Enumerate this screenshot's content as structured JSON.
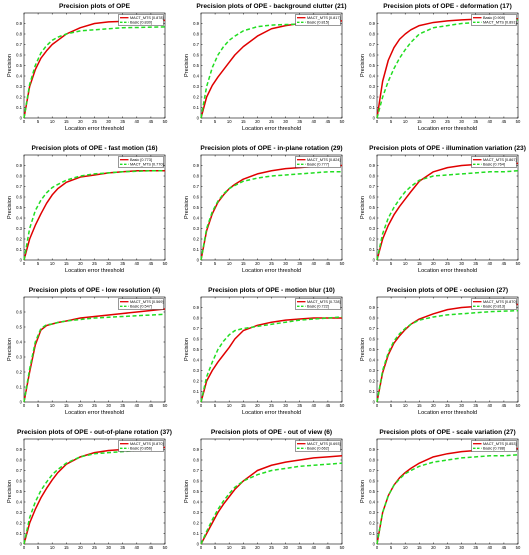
{
  "figure": {
    "background": "#ffffff"
  },
  "series_styles": [
    {
      "color": "#e00000",
      "dash": "none"
    },
    {
      "color": "#22dd22",
      "dash": "dashed"
    }
  ],
  "chart_data": [
    {
      "type": "line",
      "title": "Precision plots of OPE",
      "xlabel": "Location error threshold",
      "ylabel": "Precision",
      "xlim": [
        0,
        50
      ],
      "ylim": [
        0,
        1
      ],
      "yticks_max": 0.9,
      "legend": "top-right",
      "x": [
        0,
        2,
        4,
        6,
        8,
        10,
        12,
        15,
        20,
        25,
        30,
        35,
        40,
        45,
        50
      ],
      "series": [
        {
          "name": "MACT_MTS [0.878]",
          "values": [
            0,
            0.3,
            0.46,
            0.57,
            0.64,
            0.7,
            0.74,
            0.8,
            0.86,
            0.9,
            0.915,
            0.92,
            0.925,
            0.93,
            0.93
          ]
        },
        {
          "name": "Basic [0.830]",
          "values": [
            0,
            0.32,
            0.5,
            0.62,
            0.69,
            0.74,
            0.77,
            0.8,
            0.83,
            0.84,
            0.85,
            0.86,
            0.862,
            0.865,
            0.868
          ]
        }
      ]
    },
    {
      "type": "line",
      "title": "Precision plots of OPE - background clutter (21)",
      "xlabel": "Location error threshold",
      "ylabel": "Precision",
      "xlim": [
        0,
        50
      ],
      "ylim": [
        0,
        1
      ],
      "yticks_max": 0.9,
      "legend": "top-right",
      "x": [
        0,
        2,
        4,
        6,
        8,
        10,
        12,
        15,
        20,
        25,
        30,
        35,
        40,
        45,
        50
      ],
      "series": [
        {
          "name": "MACT_MTS [0.817]",
          "values": [
            0,
            0.2,
            0.31,
            0.39,
            0.46,
            0.53,
            0.6,
            0.68,
            0.78,
            0.85,
            0.88,
            0.9,
            0.91,
            0.92,
            0.925
          ]
        },
        {
          "name": "Basic [0.815]",
          "values": [
            0,
            0.3,
            0.48,
            0.6,
            0.68,
            0.74,
            0.78,
            0.83,
            0.87,
            0.885,
            0.89,
            0.895,
            0.9,
            0.9,
            0.9
          ]
        }
      ]
    },
    {
      "type": "line",
      "title": "Precision plots of OPE - deformation (17)",
      "xlabel": "Location error threshold",
      "ylabel": "Precision",
      "xlim": [
        0,
        50
      ],
      "ylim": [
        0,
        1
      ],
      "yticks_max": 0.9,
      "legend": "top-right",
      "x": [
        0,
        2,
        4,
        6,
        8,
        10,
        12,
        15,
        20,
        25,
        30,
        35,
        40,
        45,
        50
      ],
      "series": [
        {
          "name": "Basic [0.909]",
          "values": [
            0,
            0.35,
            0.55,
            0.67,
            0.75,
            0.8,
            0.84,
            0.88,
            0.91,
            0.925,
            0.935,
            0.94,
            0.945,
            0.945,
            0.945
          ]
        },
        {
          "name": "MACT_MTS [0.891]",
          "values": [
            0,
            0.2,
            0.35,
            0.47,
            0.57,
            0.65,
            0.72,
            0.8,
            0.86,
            0.88,
            0.9,
            0.91,
            0.92,
            0.93,
            0.935
          ]
        }
      ]
    },
    {
      "type": "line",
      "title": "Precision plots of OPE - fast motion (16)",
      "xlabel": "Location error threshold",
      "ylabel": "Precision",
      "xlim": [
        0,
        50
      ],
      "ylim": [
        0,
        1
      ],
      "yticks_max": 0.9,
      "legend": "top-right",
      "x": [
        0,
        2,
        4,
        6,
        8,
        10,
        12,
        15,
        20,
        25,
        30,
        35,
        40,
        45,
        50
      ],
      "series": [
        {
          "name": "Basic [0.773]",
          "values": [
            0,
            0.2,
            0.33,
            0.44,
            0.54,
            0.62,
            0.68,
            0.74,
            0.79,
            0.81,
            0.83,
            0.84,
            0.85,
            0.85,
            0.85
          ]
        },
        {
          "name": "MACT_MTS [0.770]",
          "values": [
            0,
            0.3,
            0.47,
            0.57,
            0.64,
            0.69,
            0.72,
            0.76,
            0.8,
            0.82,
            0.83,
            0.84,
            0.845,
            0.85,
            0.85
          ]
        }
      ]
    },
    {
      "type": "line",
      "title": "Precision plots of OPE - in-plane rotation (29)",
      "xlabel": "Location error threshold",
      "ylabel": "Precision",
      "xlim": [
        0,
        50
      ],
      "ylim": [
        0,
        1
      ],
      "yticks_max": 0.9,
      "legend": "top-right",
      "x": [
        0,
        2,
        4,
        6,
        8,
        10,
        12,
        15,
        20,
        25,
        30,
        35,
        40,
        45,
        50
      ],
      "series": [
        {
          "name": "MACT_MTS [0.824]",
          "values": [
            0,
            0.28,
            0.44,
            0.55,
            0.62,
            0.68,
            0.72,
            0.77,
            0.82,
            0.85,
            0.87,
            0.88,
            0.89,
            0.9,
            0.9
          ]
        },
        {
          "name": "Basic [0.777]",
          "values": [
            0,
            0.3,
            0.46,
            0.56,
            0.63,
            0.68,
            0.71,
            0.75,
            0.78,
            0.8,
            0.81,
            0.82,
            0.83,
            0.84,
            0.84
          ]
        }
      ]
    },
    {
      "type": "line",
      "title": "Precision plots of OPE - illumination variation (23)",
      "xlabel": "Location error threshold",
      "ylabel": "Precision",
      "xlim": [
        0,
        50
      ],
      "ylim": [
        0,
        1
      ],
      "yticks_max": 0.9,
      "legend": "top-right",
      "x": [
        0,
        2,
        4,
        6,
        8,
        10,
        12,
        15,
        20,
        25,
        30,
        35,
        40,
        45,
        50
      ],
      "series": [
        {
          "name": "MACT_MTS [0.867]",
          "values": [
            0,
            0.2,
            0.33,
            0.43,
            0.51,
            0.58,
            0.65,
            0.75,
            0.84,
            0.88,
            0.9,
            0.91,
            0.92,
            0.92,
            0.92
          ]
        },
        {
          "name": "Basic [0.764]",
          "values": [
            0,
            0.25,
            0.4,
            0.5,
            0.58,
            0.65,
            0.7,
            0.76,
            0.8,
            0.81,
            0.82,
            0.83,
            0.84,
            0.84,
            0.85
          ]
        }
      ]
    },
    {
      "type": "line",
      "title": "Precision plots of OPE - low resolution (4)",
      "xlabel": "Location error threshold",
      "ylabel": "Precision",
      "xlim": [
        0,
        50
      ],
      "ylim": [
        0,
        0.7
      ],
      "yticks_max": 0.6,
      "legend": "top-right",
      "x": [
        0,
        2,
        4,
        6,
        8,
        10,
        12,
        15,
        20,
        25,
        30,
        35,
        40,
        45,
        50
      ],
      "series": [
        {
          "name": "MACT_MTS [0.569]",
          "values": [
            0,
            0.2,
            0.38,
            0.48,
            0.51,
            0.52,
            0.53,
            0.54,
            0.56,
            0.57,
            0.58,
            0.59,
            0.6,
            0.61,
            0.62
          ]
        },
        {
          "name": "Basic [0.547]",
          "values": [
            0,
            0.22,
            0.4,
            0.49,
            0.515,
            0.52,
            0.53,
            0.54,
            0.55,
            0.56,
            0.565,
            0.57,
            0.575,
            0.58,
            0.585
          ]
        }
      ]
    },
    {
      "type": "line",
      "title": "Precision plots of OPE - motion blur (10)",
      "xlabel": "Location error threshold",
      "ylabel": "Precision",
      "xlim": [
        0,
        50
      ],
      "ylim": [
        0,
        1
      ],
      "yticks_max": 0.9,
      "legend": "top-right",
      "x": [
        0,
        2,
        4,
        6,
        8,
        10,
        12,
        15,
        20,
        25,
        30,
        35,
        40,
        45,
        50
      ],
      "series": [
        {
          "name": "MACT_MTS [0.728]",
          "values": [
            0,
            0.2,
            0.3,
            0.38,
            0.45,
            0.52,
            0.6,
            0.68,
            0.73,
            0.76,
            0.78,
            0.79,
            0.8,
            0.8,
            0.8
          ]
        },
        {
          "name": "Basic [0.722]",
          "values": [
            0,
            0.24,
            0.38,
            0.5,
            0.58,
            0.64,
            0.68,
            0.7,
            0.72,
            0.74,
            0.76,
            0.78,
            0.79,
            0.8,
            0.81
          ]
        }
      ]
    },
    {
      "type": "line",
      "title": "Precision plots of OPE - occlusion (27)",
      "xlabel": "Location error threshold",
      "ylabel": "Precision",
      "xlim": [
        0,
        50
      ],
      "ylim": [
        0,
        1
      ],
      "yticks_max": 0.9,
      "legend": "top-right",
      "x": [
        0,
        2,
        4,
        6,
        8,
        10,
        12,
        15,
        20,
        25,
        30,
        35,
        40,
        45,
        50
      ],
      "series": [
        {
          "name": "MACT_MTS [0.870]",
          "values": [
            0,
            0.28,
            0.45,
            0.56,
            0.63,
            0.69,
            0.74,
            0.79,
            0.84,
            0.88,
            0.9,
            0.91,
            0.92,
            0.92,
            0.93
          ]
        },
        {
          "name": "Basic [0.813]",
          "values": [
            0,
            0.3,
            0.47,
            0.58,
            0.65,
            0.7,
            0.74,
            0.78,
            0.81,
            0.83,
            0.84,
            0.85,
            0.86,
            0.865,
            0.87
          ]
        }
      ]
    },
    {
      "type": "line",
      "title": "Precision plots of OPE - out-of-plane rotation (37)",
      "xlabel": "Location error threshold",
      "ylabel": "Precision",
      "xlim": [
        0,
        50
      ],
      "ylim": [
        0,
        1
      ],
      "yticks_max": 0.9,
      "legend": "top-right",
      "x": [
        0,
        2,
        4,
        6,
        8,
        10,
        12,
        15,
        20,
        25,
        30,
        35,
        40,
        45,
        50
      ],
      "series": [
        {
          "name": "MACT_MTS [0.870]",
          "values": [
            0,
            0.2,
            0.33,
            0.44,
            0.53,
            0.61,
            0.68,
            0.76,
            0.83,
            0.87,
            0.89,
            0.9,
            0.91,
            0.91,
            0.92
          ]
        },
        {
          "name": "Basic [0.856]",
          "values": [
            0,
            0.25,
            0.4,
            0.51,
            0.59,
            0.66,
            0.71,
            0.77,
            0.83,
            0.86,
            0.87,
            0.88,
            0.89,
            0.9,
            0.9
          ]
        }
      ]
    },
    {
      "type": "line",
      "title": "Precision plots of OPE - out of view (6)",
      "xlabel": "Location error threshold",
      "ylabel": "Precision",
      "xlim": [
        0,
        50
      ],
      "ylim": [
        0,
        1
      ],
      "yticks_max": 0.9,
      "legend": "top-right",
      "x": [
        0,
        2,
        4,
        6,
        8,
        10,
        12,
        15,
        20,
        25,
        30,
        35,
        40,
        45,
        50
      ],
      "series": [
        {
          "name": "MACT_MTS [0.693]",
          "values": [
            0,
            0.1,
            0.2,
            0.3,
            0.38,
            0.45,
            0.52,
            0.6,
            0.7,
            0.75,
            0.78,
            0.8,
            0.82,
            0.83,
            0.84
          ]
        },
        {
          "name": "Basic [0.662]",
          "values": [
            0,
            0.12,
            0.23,
            0.33,
            0.41,
            0.48,
            0.54,
            0.6,
            0.66,
            0.7,
            0.72,
            0.74,
            0.75,
            0.76,
            0.77
          ]
        }
      ]
    },
    {
      "type": "line",
      "title": "Precision plots of OPE - scale variation (27)",
      "xlabel": "Location error threshold",
      "ylabel": "Precision",
      "xlim": [
        0,
        50
      ],
      "ylim": [
        0,
        1
      ],
      "yticks_max": 0.9,
      "legend": "top-right",
      "x": [
        0,
        2,
        4,
        6,
        8,
        10,
        12,
        15,
        20,
        25,
        30,
        35,
        40,
        45,
        50
      ],
      "series": [
        {
          "name": "MACT_MTS [0.853]",
          "values": [
            0,
            0.3,
            0.46,
            0.56,
            0.63,
            0.68,
            0.72,
            0.77,
            0.83,
            0.86,
            0.88,
            0.89,
            0.9,
            0.9,
            0.91
          ]
        },
        {
          "name": "Basic [0.788]",
          "values": [
            0,
            0.3,
            0.46,
            0.56,
            0.62,
            0.67,
            0.7,
            0.74,
            0.78,
            0.8,
            0.82,
            0.83,
            0.84,
            0.84,
            0.85
          ]
        }
      ]
    }
  ]
}
